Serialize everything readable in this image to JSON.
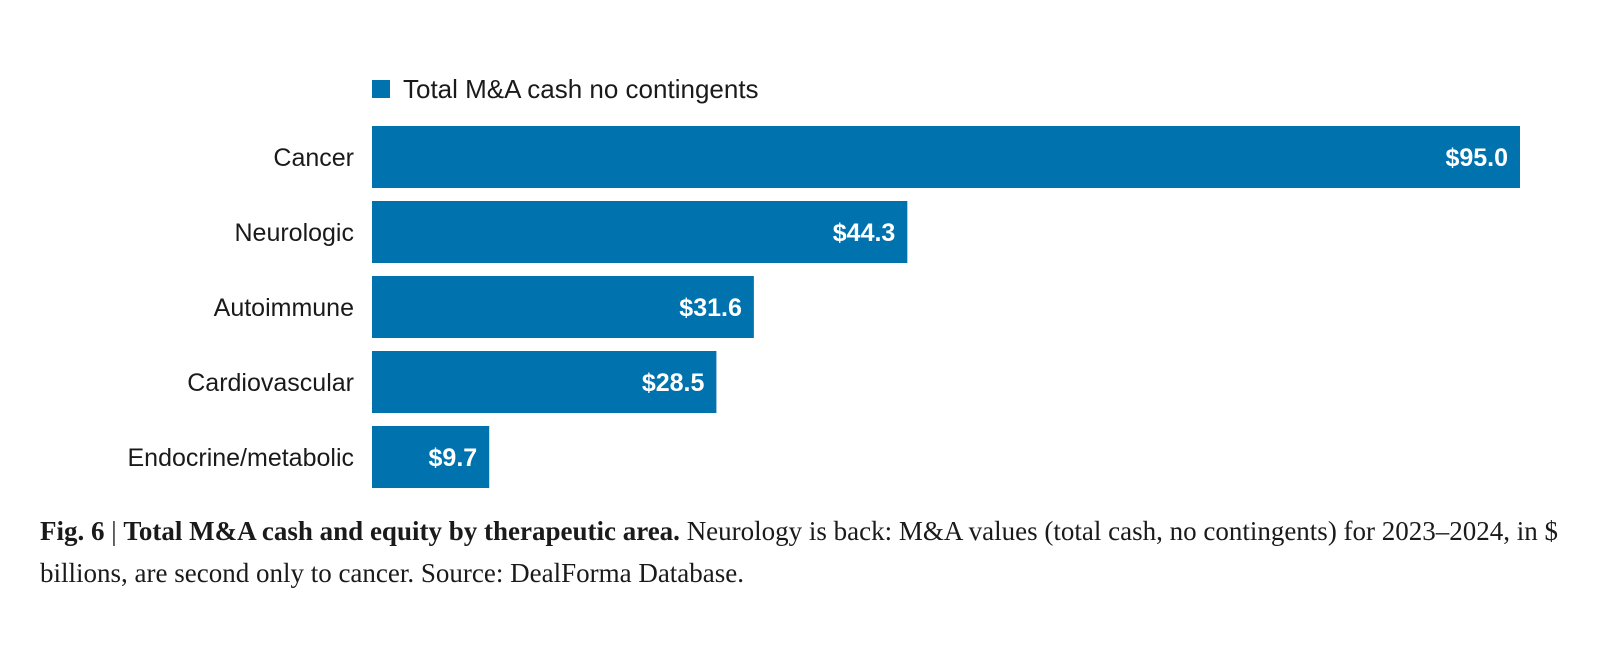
{
  "chart_data": {
    "type": "bar",
    "orientation": "horizontal",
    "categories": [
      "Cancer",
      "Neurologic",
      "Autoimmune",
      "Cardiovascular",
      "Endocrine/metabolic"
    ],
    "series": [
      {
        "name": "Total M&A cash no contingents",
        "values": [
          95.0,
          44.3,
          31.6,
          28.5,
          9.7
        ],
        "labels": [
          "$95.0",
          "$44.3",
          "$31.6",
          "$28.5",
          "$9.7"
        ]
      }
    ],
    "xlim": [
      0,
      95.0
    ],
    "grid": false,
    "legend_position": "top-left",
    "colors": {
      "bar": "#0072AE",
      "bar_label": "#ffffff"
    }
  },
  "caption": {
    "fig_label": "Fig. 6",
    "separator": " | ",
    "bold_title": "Total M&A cash and equity by therapeutic area.",
    "text": " Neurology is back: M&A values (total cash, no contingents) for 2023–2024, in $ billions, are second only to cancer. Source: DealForma Database."
  }
}
